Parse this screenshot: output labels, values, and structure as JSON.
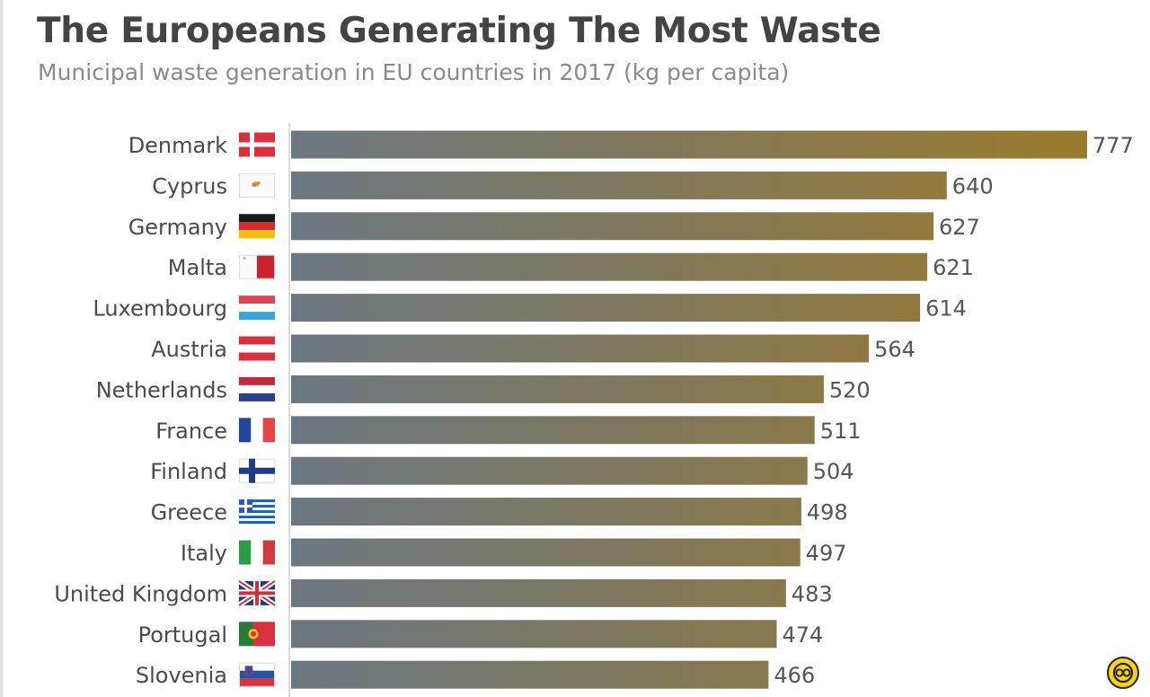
{
  "title": "The Europeans Generating The Most Waste",
  "subtitle": "Municipal waste generation in EU countries in 2017 (kg per capita)",
  "colors": {
    "bar_start": "#6b7781",
    "bar_end": "#9b7a2c",
    "axis": "#cfcfcf"
  },
  "chart_data": {
    "type": "bar",
    "orientation": "horizontal",
    "categories": [
      "Denmark",
      "Cyprus",
      "Germany",
      "Malta",
      "Luxembourg",
      "Austria",
      "Netherlands",
      "France",
      "Finland",
      "Greece",
      "Italy",
      "United Kingdom",
      "Portugal",
      "Slovenia"
    ],
    "values": [
      777,
      640,
      627,
      621,
      614,
      564,
      520,
      511,
      504,
      498,
      497,
      483,
      474,
      466
    ],
    "flags": [
      "denmark-flag",
      "cyprus-flag",
      "germany-flag",
      "malta-flag",
      "luxembourg-flag",
      "austria-flag",
      "netherlands-flag",
      "france-flag",
      "finland-flag",
      "greece-flag",
      "italy-flag",
      "united-kingdom-flag",
      "portugal-flag",
      "slovenia-flag"
    ],
    "xlim": [
      0,
      777
    ],
    "data_labels": true,
    "grid": false,
    "legend": "none"
  }
}
